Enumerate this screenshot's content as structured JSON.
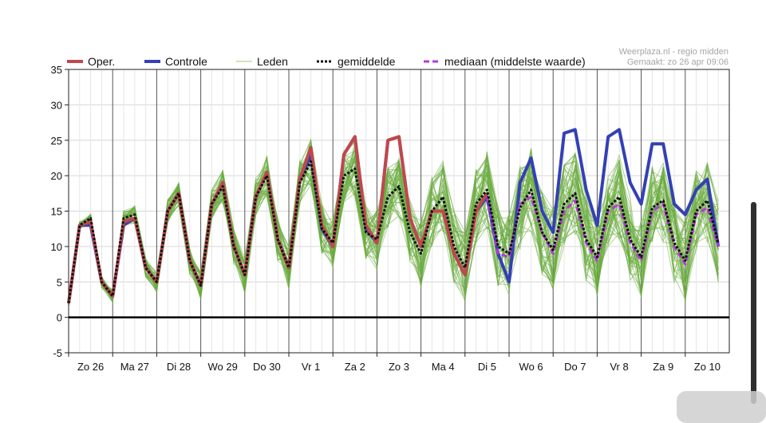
{
  "credit": {
    "line1": "Weerplaza.nl - regio midden",
    "line2": "Gemaakt: zo 26 apr 09:06"
  },
  "colors": {
    "oper": "#c0484b",
    "controle": "#3440b4",
    "leden": "#6aab3e",
    "gemiddelde": "#111111",
    "mediaan": "#b53ad6",
    "grid": "#d6d6d6",
    "day_line": "#555555",
    "zero_line": "#000000"
  },
  "chart_data": {
    "type": "line",
    "ylim": [
      -5,
      35
    ],
    "yticks": [
      -5,
      0,
      5,
      10,
      15,
      20,
      25,
      30,
      35
    ],
    "xlim": [
      0,
      15
    ],
    "days": [
      "Zo 26",
      "Ma 27",
      "Di 28",
      "Wo 29",
      "Do 30",
      "Vr 1",
      "Za 2",
      "Zo 3",
      "Ma 4",
      "Di 5",
      "Wo 6",
      "Do 7",
      "Vr 8",
      "Za 9",
      "Zo 10"
    ],
    "legend": [
      {
        "name": "Oper.",
        "key": "oper"
      },
      {
        "name": "Controle",
        "key": "controle"
      },
      {
        "name": "Leden",
        "key": "leden"
      },
      {
        "name": "gemiddelde",
        "key": "gemiddelde"
      },
      {
        "name": "mediaan (middelste waarde)",
        "key": "mediaan"
      }
    ],
    "oper": {
      "x": [
        0,
        0.25,
        0.5,
        0.75,
        1,
        1.25,
        1.5,
        1.75,
        2,
        2.25,
        2.5,
        2.75,
        3,
        3.25,
        3.5,
        3.75,
        4,
        4.25,
        4.5,
        4.75,
        5,
        5.25,
        5.5,
        5.75,
        6,
        6.25,
        6.5,
        6.75,
        7,
        7.25,
        7.5,
        7.75,
        8,
        8.25,
        8.5,
        8.75,
        9,
        9.25,
        9.5
      ],
      "y": [
        2,
        13,
        13.5,
        5,
        3,
        13.5,
        14,
        7,
        5,
        15,
        17.5,
        8,
        4.5,
        16,
        19,
        10,
        6,
        17,
        20.5,
        11,
        7,
        19.5,
        24,
        13,
        10,
        23,
        25.5,
        13,
        10.5,
        25,
        25.5,
        14,
        10,
        15,
        15,
        9,
        6,
        15,
        17.5
      ]
    },
    "controle": {
      "x": [
        0,
        0.25,
        0.5,
        0.75,
        1,
        1.25,
        1.5,
        1.75,
        2,
        2.25,
        2.5,
        2.75,
        3,
        3.25,
        3.5,
        3.75,
        4,
        4.25,
        4.5,
        4.75,
        5,
        5.25,
        5.5,
        5.75,
        6,
        6.25,
        6.5,
        6.75,
        7,
        7.25,
        7.5,
        7.75,
        8,
        8.25,
        8.5,
        8.75,
        9,
        9.25,
        9.5,
        9.75,
        10,
        10.25,
        10.5,
        10.75,
        11,
        11.25,
        11.5,
        11.75,
        12,
        12.25,
        12.5,
        12.75,
        13,
        13.25,
        13.5,
        13.75,
        14,
        14.25,
        14.5,
        14.75
      ],
      "y": [
        2,
        13,
        13,
        5,
        3,
        13,
        14,
        7,
        5,
        15,
        17.5,
        8,
        4.5,
        16,
        19,
        10,
        6,
        17,
        20.5,
        11,
        7,
        19.5,
        23,
        12.5,
        10,
        23,
        25.5,
        12.5,
        10.5,
        25,
        25.5,
        14,
        10,
        15,
        15,
        9,
        6,
        15,
        17,
        9,
        5,
        19,
        22.5,
        15,
        12,
        26,
        26.5,
        18,
        13,
        25.5,
        26.5,
        19,
        16,
        24.5,
        24.5,
        16,
        14.5,
        18,
        19.5,
        10
      ]
    },
    "gemiddelde": {
      "x": [
        0,
        0.25,
        0.5,
        0.75,
        1,
        1.25,
        1.5,
        1.75,
        2,
        2.25,
        2.5,
        2.75,
        3,
        3.25,
        3.5,
        3.75,
        4,
        4.25,
        4.5,
        4.75,
        5,
        5.25,
        5.5,
        5.75,
        6,
        6.25,
        6.5,
        6.75,
        7,
        7.25,
        7.5,
        7.75,
        8,
        8.25,
        8.5,
        8.75,
        9,
        9.25,
        9.5,
        9.75,
        10,
        10.25,
        10.5,
        10.75,
        11,
        11.25,
        11.5,
        11.75,
        12,
        12.25,
        12.5,
        12.75,
        13,
        13.25,
        13.5,
        13.75,
        14,
        14.25,
        14.5,
        14.75
      ],
      "y": [
        2,
        13,
        14,
        5,
        3,
        14,
        14.5,
        7,
        5,
        15,
        17.5,
        8,
        4.5,
        16,
        18.5,
        10,
        6,
        17,
        20,
        11,
        7,
        19,
        22,
        12.5,
        10.5,
        20,
        21,
        12,
        11,
        17,
        18.5,
        12,
        9,
        15,
        17,
        10,
        7,
        16,
        18,
        10,
        9,
        15.5,
        18,
        12,
        9.5,
        16,
        17.5,
        11,
        8.5,
        15.5,
        17,
        11,
        8.5,
        15.5,
        16.5,
        10.5,
        8,
        15,
        16.5,
        10.5
      ]
    },
    "mediaan": {
      "x": [
        9.5,
        9.75,
        10,
        10.25,
        10.5,
        10.75,
        11,
        11.25,
        11.5,
        11.75,
        12,
        12.25,
        12.5,
        12.75,
        13,
        13.25,
        13.5,
        13.75,
        14,
        14.25,
        14.5,
        14.75
      ],
      "y": [
        17,
        9,
        8.5,
        16,
        17,
        12,
        9,
        15,
        16.5,
        10.5,
        8,
        15,
        16,
        10.5,
        8,
        15,
        16,
        10,
        7.5,
        14.5,
        15.5,
        10
      ]
    }
  }
}
